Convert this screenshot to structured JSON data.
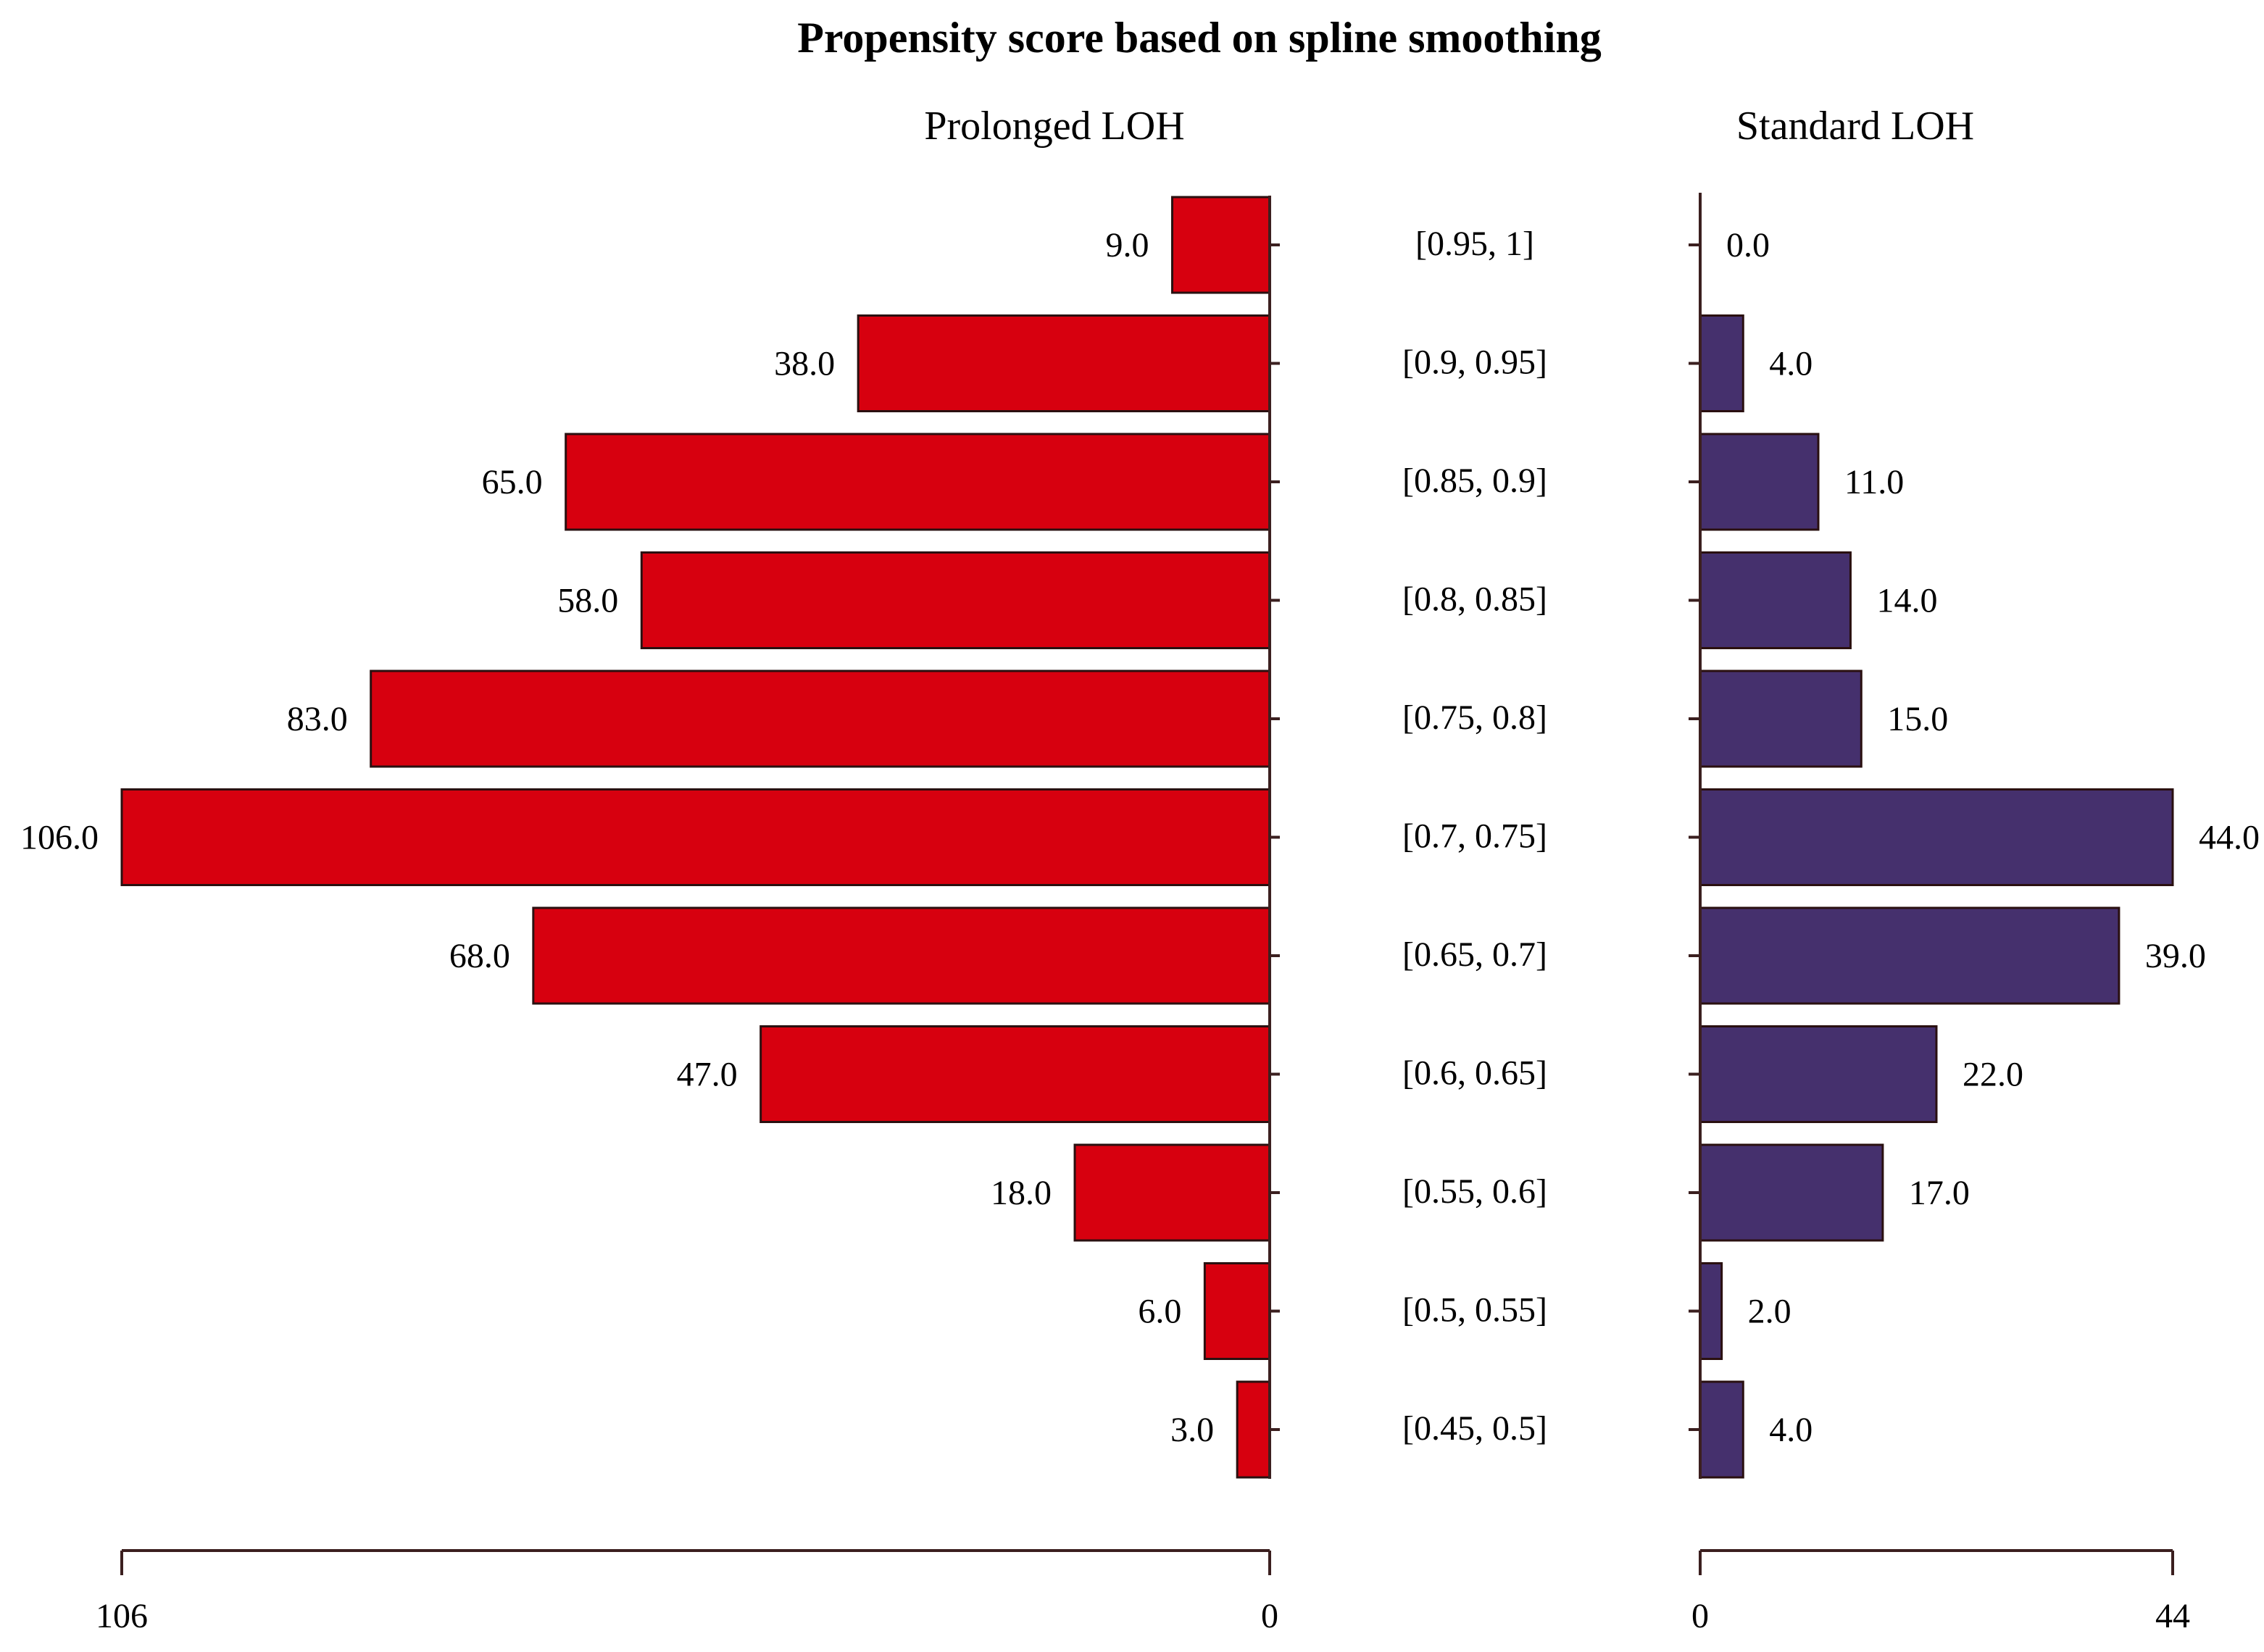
{
  "chart_data": {
    "type": "bar",
    "title": "Propensity score based on spline smoothing",
    "categories": [
      "[0.95, 1]",
      "[0.9, 0.95]",
      "[0.85, 0.9]",
      "[0.8, 0.85]",
      "[0.75, 0.8]",
      "[0.7, 0.75]",
      "[0.65, 0.7]",
      "[0.6, 0.65]",
      "[0.55, 0.6]",
      "[0.5, 0.55]",
      "[0.45, 0.5]"
    ],
    "series": [
      {
        "name": "Prolonged LOH",
        "values": [
          9,
          38,
          65,
          58,
          83,
          106,
          68,
          47,
          18,
          6,
          3
        ],
        "labels": [
          "9.0",
          "38.0",
          "65.0",
          "58.0",
          "83.0",
          "106.0",
          "68.0",
          "47.0",
          "18.0",
          "6.0",
          "3.0"
        ],
        "color": "#d7000f",
        "axis_range": [
          0,
          106
        ],
        "axis_ticks": [
          "106",
          "0"
        ],
        "direction": "left"
      },
      {
        "name": "Standard LOH",
        "values": [
          0,
          4,
          11,
          14,
          15,
          44,
          39,
          22,
          17,
          2,
          4
        ],
        "labels": [
          "0.0",
          "4.0",
          "11.0",
          "14.0",
          "15.0",
          "44.0",
          "39.0",
          "22.0",
          "17.0",
          "2.0",
          "4.0"
        ],
        "color": "#45306d",
        "axis_range": [
          0,
          44
        ],
        "axis_ticks": [
          "0",
          "44"
        ],
        "direction": "right"
      }
    ],
    "legend": "none",
    "grid": false
  }
}
